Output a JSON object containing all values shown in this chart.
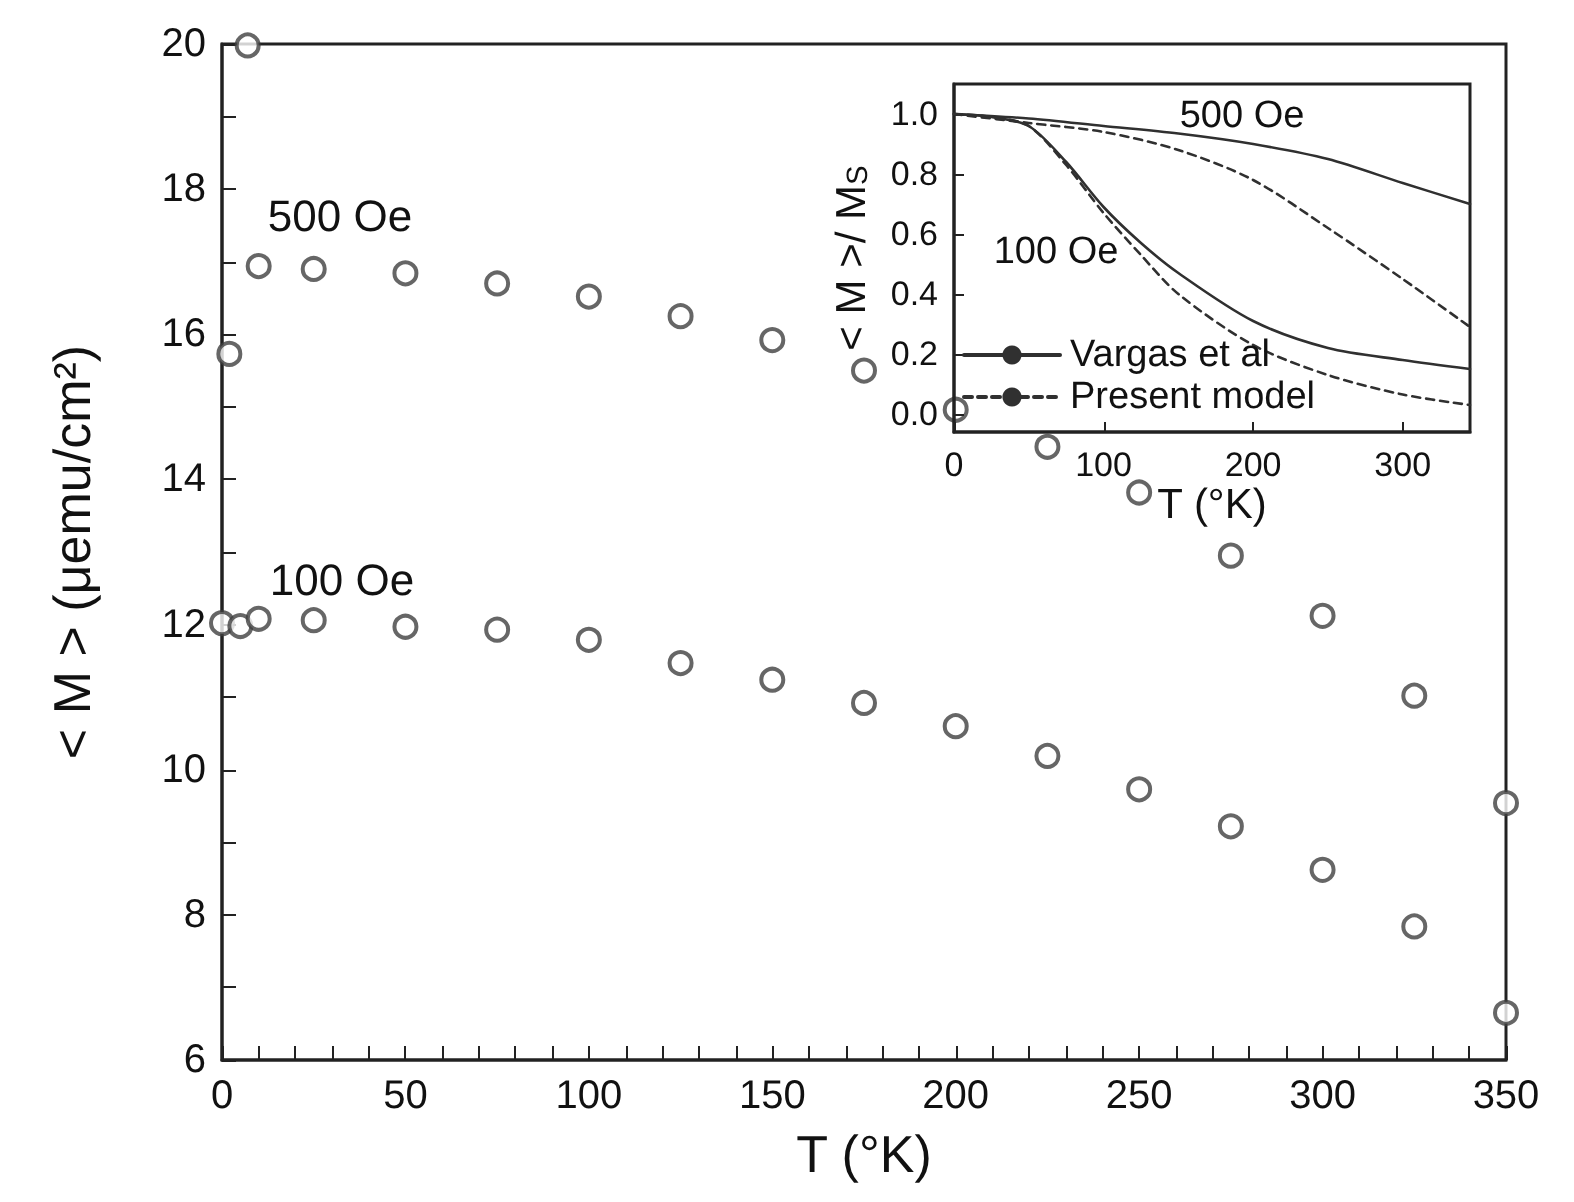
{
  "chart_data": [
    {
      "type": "scatter",
      "xlabel": "T (°K)",
      "ylabel": "< M > (μemu/cm²)",
      "marker": "circle",
      "grid": false,
      "legend": false,
      "xlim": [
        0,
        350
      ],
      "ylim": [
        6,
        20
      ],
      "xticks": [
        0,
        {
          "value": 10,
          "label": null
        },
        {
          "value": 20,
          "label": null
        },
        {
          "value": 30,
          "label": null
        },
        {
          "value": 40,
          "label": null
        },
        50,
        {
          "value": 60,
          "label": null
        },
        {
          "value": 70,
          "label": null
        },
        {
          "value": 80,
          "label": null
        },
        {
          "value": 90,
          "label": null
        },
        100,
        {
          "value": 110,
          "label": null
        },
        {
          "value": 120,
          "label": null
        },
        {
          "value": 130,
          "label": null
        },
        {
          "value": 140,
          "label": null
        },
        150,
        {
          "value": 160,
          "label": null
        },
        {
          "value": 170,
          "label": null
        },
        {
          "value": 180,
          "label": null
        },
        {
          "value": 190,
          "label": null
        },
        200,
        {
          "value": 210,
          "label": null
        },
        {
          "value": 220,
          "label": null
        },
        {
          "value": 230,
          "label": null
        },
        {
          "value": 240,
          "label": null
        },
        250,
        {
          "value": 260,
          "label": null
        },
        {
          "value": 270,
          "label": null
        },
        {
          "value": 280,
          "label": null
        },
        {
          "value": 290,
          "label": null
        },
        300,
        {
          "value": 310,
          "label": null
        },
        {
          "value": 320,
          "label": null
        },
        {
          "value": 330,
          "label": null
        },
        {
          "value": 340,
          "label": null
        },
        350
      ],
      "yticks": [
        6,
        {
          "value": 7,
          "label": null
        },
        8,
        {
          "value": 9,
          "label": null
        },
        10,
        {
          "value": 11,
          "label": null
        },
        12,
        {
          "value": 13,
          "label": null
        },
        14,
        {
          "value": 15,
          "label": null
        },
        16,
        {
          "value": 17,
          "label": null
        },
        18,
        {
          "value": 19,
          "label": null
        },
        20
      ],
      "series": [
        {
          "color": "#404040",
          "x": [
            2,
            7,
            10,
            25,
            50,
            75,
            100,
            125,
            150,
            175,
            200,
            225,
            250,
            275,
            300,
            325,
            350
          ],
          "values": [
            15.73,
            19.98,
            16.94,
            16.9,
            16.84,
            16.7,
            16.52,
            16.25,
            15.92,
            15.5,
            14.96,
            14.45,
            13.82,
            12.95,
            12.12,
            11.02,
            9.54
          ]
        },
        {
          "color": "#404040",
          "x": [
            0,
            5,
            10,
            25,
            50,
            75,
            100,
            125,
            150,
            175,
            200,
            225,
            250,
            275,
            300,
            325,
            350
          ],
          "values": [
            12.02,
            11.98,
            12.08,
            12.06,
            11.97,
            11.93,
            11.79,
            11.47,
            11.24,
            10.92,
            10.6,
            10.19,
            9.73,
            9.22,
            8.62,
            7.84,
            6.65
          ]
        }
      ],
      "annotations": [
        "500 Oe",
        "100 Oe"
      ]
    },
    {
      "type": "line",
      "xlabel": "T (°K)",
      "ylabel": "< M >/ M$_{S}$",
      "marker": "none",
      "grid": false,
      "legend": "bottom left",
      "xlim": [
        0,
        345
      ],
      "ylim": [
        -0.06,
        1.1
      ],
      "xticks": [
        0,
        100,
        200,
        300
      ],
      "yticks": [
        {
          "value": 0,
          "label": "0.0"
        },
        0.2,
        0.4,
        0.6,
        0.8,
        {
          "value": 1,
          "label": "1.0"
        }
      ],
      "series": [
        {
          "name": "Vargas et al",
          "color": "#303030",
          "line_style": "solid",
          "x": [
            0,
            50,
            100,
            150,
            200,
            250,
            300,
            345
          ],
          "values": [
            1.0,
            0.985,
            0.96,
            0.935,
            0.9,
            0.85,
            0.77,
            0.7
          ]
        },
        {
          "name": "Present model",
          "color": "#303030",
          "line_style": "dashed",
          "x": [
            0,
            50,
            100,
            150,
            200,
            250,
            300,
            345
          ],
          "values": [
            1.0,
            0.97,
            0.94,
            0.88,
            0.78,
            0.62,
            0.45,
            0.29
          ]
        },
        {
          "color": "#303030",
          "line_style": "solid",
          "x": [
            0,
            25,
            50,
            75,
            100,
            125,
            150,
            200,
            250,
            300,
            345
          ],
          "values": [
            1.0,
            0.99,
            0.96,
            0.84,
            0.69,
            0.57,
            0.47,
            0.31,
            0.22,
            0.18,
            0.15
          ]
        },
        {
          "color": "#303030",
          "line_style": "dashed",
          "x": [
            0,
            25,
            50,
            75,
            100,
            125,
            150,
            200,
            250,
            300,
            345
          ],
          "values": [
            1.0,
            0.99,
            0.96,
            0.83,
            0.67,
            0.53,
            0.4,
            0.23,
            0.13,
            0.065,
            0.03
          ]
        }
      ],
      "annotations": [
        "500 Oe",
        "100 Oe"
      ]
    }
  ]
}
